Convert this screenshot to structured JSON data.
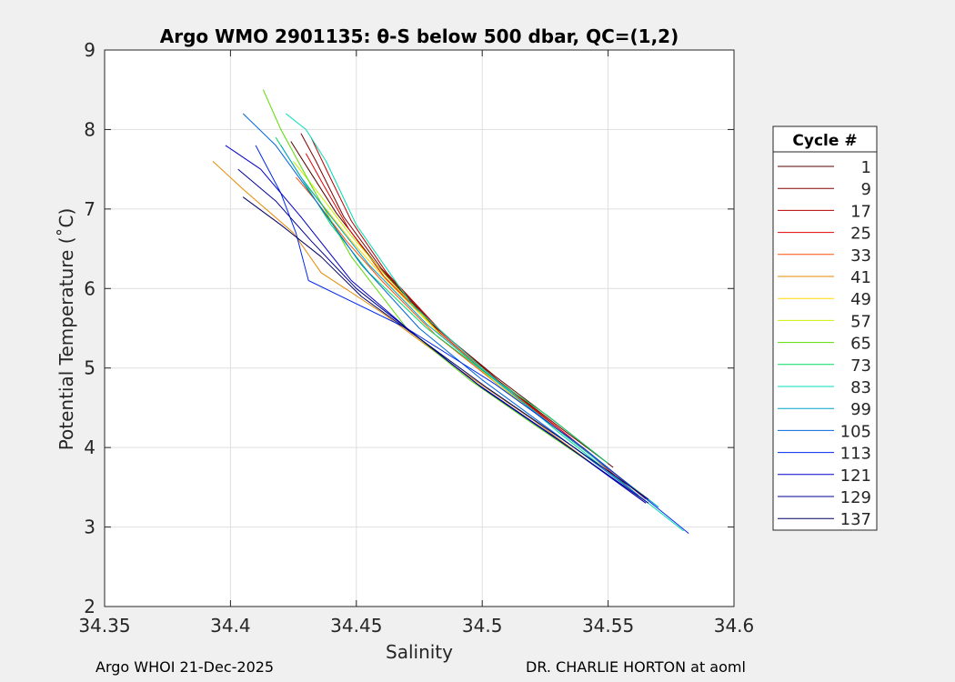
{
  "footer": {
    "left": "Argo WHOI 21-Dec-2025",
    "right": "DR. CHARLIE HORTON at aoml"
  },
  "chart_data": {
    "type": "line",
    "title": "Argo WMO 2901135: θ-S below 500 dbar,  QC=(1,2)",
    "xlabel": "Salinity",
    "ylabel": "Potential Temperature (˚C)",
    "xlim": [
      34.35,
      34.6
    ],
    "ylim": [
      2,
      9
    ],
    "xticks": [
      34.35,
      34.4,
      34.45,
      34.5,
      34.55,
      34.6
    ],
    "xtick_labels": [
      "34.35",
      "34.4",
      "34.45",
      "34.5",
      "34.55",
      "34.6"
    ],
    "yticks": [
      2,
      3,
      4,
      5,
      6,
      7,
      8,
      9
    ],
    "ytick_labels": [
      "2",
      "3",
      "4",
      "5",
      "6",
      "7",
      "8",
      "9"
    ],
    "grid": true,
    "legend": {
      "title": "Cycle #",
      "placement": "outside-right"
    },
    "series": [
      {
        "name": "1",
        "color": "#5a0000",
        "x": [
          34.424,
          34.43,
          34.442,
          34.458,
          34.48,
          34.505,
          34.53,
          34.552
        ],
        "y": [
          7.85,
          7.55,
          6.95,
          6.3,
          5.55,
          4.9,
          4.3,
          3.75
        ]
      },
      {
        "name": "9",
        "color": "#800000",
        "x": [
          34.428,
          34.434,
          34.445,
          34.46,
          34.482,
          34.506,
          34.531,
          34.55
        ],
        "y": [
          7.95,
          7.6,
          6.9,
          6.25,
          5.5,
          4.85,
          4.25,
          3.8
        ]
      },
      {
        "name": "17",
        "color": "#b40000",
        "x": [
          34.432,
          34.438,
          34.448,
          34.462,
          34.484,
          34.508,
          34.534,
          34.56
        ],
        "y": [
          7.9,
          7.5,
          6.85,
          6.2,
          5.45,
          4.8,
          4.15,
          3.45
        ]
      },
      {
        "name": "25",
        "color": "#e60000",
        "x": [
          34.43,
          34.437,
          34.447,
          34.461,
          34.483,
          34.507,
          34.532,
          34.565
        ],
        "y": [
          7.7,
          7.3,
          6.75,
          6.15,
          5.45,
          4.8,
          4.2,
          3.35
        ]
      },
      {
        "name": "33",
        "color": "#ff5000",
        "x": [
          34.426,
          34.434,
          34.446,
          34.46,
          34.482,
          34.506,
          34.533,
          34.566
        ],
        "y": [
          7.4,
          7.1,
          6.6,
          6.1,
          5.4,
          4.8,
          4.15,
          3.35
        ]
      },
      {
        "name": "41",
        "color": "#e68a00",
        "x": [
          34.393,
          34.405,
          34.425,
          34.436,
          34.46,
          34.49,
          34.52,
          34.565
        ],
        "y": [
          7.6,
          7.25,
          6.7,
          6.2,
          5.7,
          5.0,
          4.35,
          3.3
        ]
      },
      {
        "name": "49",
        "color": "#ffd700",
        "x": [
          34.43,
          34.438,
          34.448,
          34.462,
          34.484,
          34.508,
          34.535,
          34.564
        ],
        "y": [
          7.3,
          7.0,
          6.6,
          6.1,
          5.4,
          4.78,
          4.1,
          3.4
        ]
      },
      {
        "name": "57",
        "color": "#c8f000",
        "x": [
          34.425,
          34.435,
          34.447,
          34.462,
          34.484,
          34.508,
          34.535,
          34.568
        ],
        "y": [
          7.6,
          7.2,
          6.7,
          6.15,
          5.4,
          4.75,
          4.1,
          3.3
        ]
      },
      {
        "name": "65",
        "color": "#5adc00",
        "x": [
          34.413,
          34.42,
          34.432,
          34.448,
          34.47,
          34.495,
          34.52,
          34.548
        ],
        "y": [
          8.5,
          8.0,
          7.3,
          6.4,
          5.5,
          4.85,
          4.3,
          3.7
        ]
      },
      {
        "name": "73",
        "color": "#00dc64",
        "x": [
          34.418,
          34.428,
          34.44,
          34.455,
          34.478,
          34.503,
          34.526,
          34.55
        ],
        "y": [
          7.9,
          7.4,
          6.8,
          6.2,
          5.5,
          4.9,
          4.4,
          3.8
        ]
      },
      {
        "name": "83",
        "color": "#00dcb4",
        "x": [
          34.422,
          34.43,
          34.438,
          34.45,
          34.472,
          34.5,
          34.53,
          34.58
        ],
        "y": [
          8.2,
          8.0,
          7.6,
          6.8,
          5.8,
          5.0,
          4.2,
          2.95
        ]
      },
      {
        "name": "99",
        "color": "#00a0c8",
        "x": [
          34.42,
          34.428,
          34.44,
          34.455,
          34.478,
          34.505,
          34.533,
          34.57
        ],
        "y": [
          7.8,
          7.4,
          6.9,
          6.3,
          5.55,
          4.85,
          4.15,
          3.25
        ]
      },
      {
        "name": "105",
        "color": "#0064dc",
        "x": [
          34.405,
          34.418,
          34.434,
          34.452,
          34.475,
          34.5,
          34.528,
          34.562
        ],
        "y": [
          8.2,
          7.8,
          7.1,
          6.3,
          5.5,
          4.85,
          4.2,
          3.4
        ]
      },
      {
        "name": "113",
        "color": "#0028f0",
        "x": [
          34.41,
          34.42,
          34.426,
          34.431,
          34.47,
          34.505,
          34.54,
          34.582
        ],
        "y": [
          7.8,
          7.2,
          6.7,
          6.1,
          5.5,
          4.8,
          4.0,
          2.92
        ]
      },
      {
        "name": "121",
        "color": "#0000c8",
        "x": [
          34.398,
          34.412,
          34.428,
          34.448,
          34.472,
          34.498,
          34.528,
          34.565
        ],
        "y": [
          7.8,
          7.5,
          6.9,
          6.1,
          5.45,
          4.8,
          4.15,
          3.3
        ]
      },
      {
        "name": "129",
        "color": "#000096",
        "x": [
          34.403,
          34.418,
          34.432,
          34.45,
          34.474,
          34.5,
          34.53,
          34.566
        ],
        "y": [
          7.5,
          7.1,
          6.6,
          6.0,
          5.4,
          4.75,
          4.1,
          3.3
        ]
      },
      {
        "name": "137",
        "color": "#000064",
        "x": [
          34.405,
          34.42,
          34.436,
          34.452,
          34.476,
          34.502,
          34.532,
          34.566
        ],
        "y": [
          7.15,
          6.8,
          6.4,
          5.9,
          5.35,
          4.75,
          4.1,
          3.35
        ]
      }
    ]
  }
}
